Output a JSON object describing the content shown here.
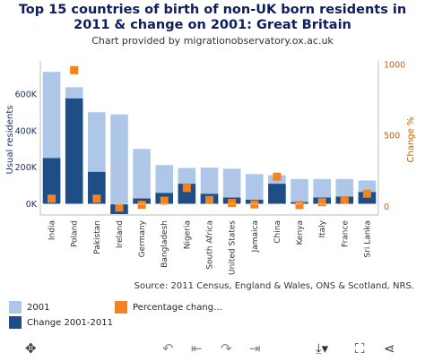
{
  "title": "Top 15 countries of birth of non-UK born residents in 2011 & change on 2001: Great Britain",
  "subtitle": "Chart provided by migrationobservatory.ox.ac.uk",
  "source": "Source: 2011 Census, England & Wales, ONS & Scotland, NRS.",
  "legend": {
    "s2001": "2001",
    "change": "Change 2001-2011",
    "pct": "Percentage chang…"
  },
  "colors": {
    "s2001": "#aec7e8",
    "change": "#1f4e87",
    "pct": "#f58220",
    "left_axis": "#1a2f6e",
    "right_axis": "#c05f14"
  },
  "toolbar": {
    "move_icon": "move-icon",
    "undo_icon": "undo-icon",
    "undo_all_icon": "undo-all-icon",
    "redo_icon": "redo-icon",
    "redo_all_icon": "redo-all-icon",
    "download_icon": "download-icon",
    "fullscreen_icon": "fullscreen-icon",
    "share_icon": "share-icon"
  },
  "chart_data": {
    "type": "bar",
    "ylabel": "Usual residents",
    "y2label": "Change %",
    "ylim": [
      -60000,
      760000
    ],
    "yticks": [
      0,
      200000,
      400000,
      600000
    ],
    "ytick_labels": [
      "0K",
      "200K",
      "400K",
      "600K"
    ],
    "y2lim": [
      -60,
      1000
    ],
    "y2ticks": [
      0,
      500,
      1000
    ],
    "y2tick_labels": [
      "0",
      "500",
      "1000"
    ],
    "categories": [
      "India",
      "Poland",
      "Pakistan",
      "Ireland",
      "Germany",
      "Bangladesh",
      "Nigeria",
      "South Africa",
      "United States",
      "Jamaica",
      "China",
      "Kenya",
      "Italy",
      "France",
      "Sri Lanka"
    ],
    "series": [
      {
        "name": "2001",
        "kind": "bar",
        "axis": "left",
        "values": [
          720000,
          636000,
          500000,
          488000,
          300000,
          212000,
          196000,
          198000,
          192000,
          163000,
          157000,
          136000,
          136000,
          136000,
          128000
        ]
      },
      {
        "name": "Change 2001-2011",
        "kind": "bar",
        "axis": "left",
        "values": [
          250000,
          575000,
          175000,
          -55000,
          30000,
          60000,
          110000,
          55000,
          35000,
          23000,
          110000,
          10000,
          35000,
          40000,
          65000
        ]
      },
      {
        "name": "Percentage chang…",
        "kind": "scatter",
        "axis": "right",
        "values": [
          55,
          960,
          55,
          -8,
          12,
          40,
          130,
          45,
          25,
          15,
          210,
          10,
          30,
          45,
          90
        ]
      }
    ]
  }
}
